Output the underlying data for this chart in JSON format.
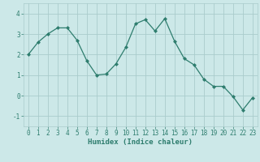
{
  "x": [
    0,
    1,
    2,
    3,
    4,
    5,
    6,
    7,
    8,
    9,
    10,
    11,
    12,
    13,
    14,
    15,
    16,
    17,
    18,
    19,
    20,
    21,
    22,
    23
  ],
  "y": [
    2.0,
    2.6,
    3.0,
    3.3,
    3.3,
    2.7,
    1.7,
    1.0,
    1.05,
    1.55,
    2.35,
    3.5,
    3.7,
    3.15,
    3.75,
    2.65,
    1.8,
    1.5,
    0.8,
    0.45,
    0.45,
    -0.05,
    -0.7,
    -0.1
  ],
  "line_color": "#2e7d6e",
  "marker": "D",
  "marker_size": 2,
  "bg_color": "#cce8e8",
  "grid_color": "#aacccc",
  "xlabel": "Humidex (Indice chaleur)",
  "ylabel": "",
  "title": "",
  "xlim": [
    -0.5,
    23.5
  ],
  "ylim": [
    -1.5,
    4.5
  ],
  "yticks": [
    -1,
    0,
    1,
    2,
    3,
    4
  ],
  "xticks": [
    0,
    1,
    2,
    3,
    4,
    5,
    6,
    7,
    8,
    9,
    10,
    11,
    12,
    13,
    14,
    15,
    16,
    17,
    18,
    19,
    20,
    21,
    22,
    23
  ],
  "tick_fontsize": 5.5,
  "xlabel_fontsize": 6.5
}
